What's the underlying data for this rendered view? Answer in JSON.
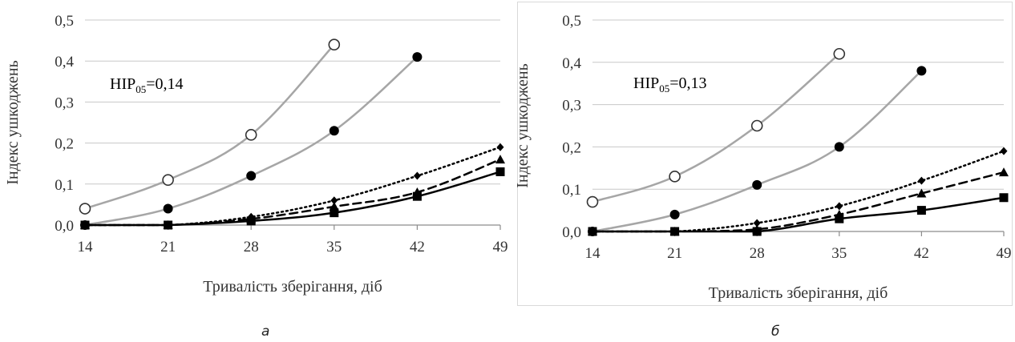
{
  "chart_data": [
    {
      "type": "line",
      "x": [
        14,
        21,
        28,
        35,
        42,
        49
      ],
      "xlabel": "Тривалість зберігання, діб",
      "ylabel": "Індекс ушкоджень",
      "ylim": [
        0,
        0.5
      ],
      "yticks": [
        "0,0",
        "0,1",
        "0,2",
        "0,3",
        "0,4",
        "0,5"
      ],
      "xticks": [
        "14",
        "21",
        "28",
        "35",
        "42",
        "49"
      ],
      "grid": true,
      "annotation": {
        "prefix": "НІР",
        "sub": "05",
        "value": "=0,14"
      },
      "caption": "а",
      "series": [
        {
          "marker": "open-circle",
          "line": "solid-light",
          "x": [
            14,
            21,
            28,
            35
          ],
          "values": [
            0.04,
            0.11,
            0.22,
            0.44
          ]
        },
        {
          "marker": "filled-circle",
          "line": "solid-light",
          "x": [
            14,
            21,
            28,
            35,
            42
          ],
          "values": [
            0.0,
            0.04,
            0.12,
            0.23,
            0.41
          ]
        },
        {
          "marker": "diamond",
          "line": "dotted",
          "x": [
            14,
            21,
            28,
            35,
            42,
            49
          ],
          "values": [
            0.0,
            0.0,
            0.02,
            0.06,
            0.12,
            0.19
          ]
        },
        {
          "marker": "triangle",
          "line": "dashed",
          "x": [
            14,
            21,
            28,
            35,
            42,
            49
          ],
          "values": [
            0.0,
            0.0,
            0.015,
            0.045,
            0.08,
            0.16
          ]
        },
        {
          "marker": "square",
          "line": "solid-dark",
          "x": [
            14,
            21,
            28,
            35,
            42,
            49
          ],
          "values": [
            0.0,
            0.0,
            0.01,
            0.03,
            0.07,
            0.13
          ]
        }
      ]
    },
    {
      "type": "line",
      "x": [
        14,
        21,
        28,
        35,
        42,
        49
      ],
      "xlabel": "Тривалість зберігання, діб",
      "ylabel": "Індекс ушкоджень",
      "ylim": [
        0,
        0.5
      ],
      "yticks": [
        "0,0",
        "0,1",
        "0,2",
        "0,3",
        "0,4",
        "0,5"
      ],
      "xticks": [
        "14",
        "21",
        "28",
        "35",
        "42",
        "49"
      ],
      "grid": true,
      "annotation": {
        "prefix": "НІР",
        "sub": "05",
        "value": "=0,13"
      },
      "caption": "б",
      "series": [
        {
          "marker": "open-circle",
          "line": "solid-light",
          "x": [
            14,
            21,
            28,
            35
          ],
          "values": [
            0.07,
            0.13,
            0.25,
            0.42
          ]
        },
        {
          "marker": "filled-circle",
          "line": "solid-light",
          "x": [
            14,
            21,
            28,
            35,
            42
          ],
          "values": [
            0.0,
            0.04,
            0.11,
            0.2,
            0.38
          ]
        },
        {
          "marker": "diamond",
          "line": "dotted",
          "x": [
            14,
            21,
            28,
            35,
            42,
            49
          ],
          "values": [
            0.0,
            0.0,
            0.02,
            0.06,
            0.12,
            0.19
          ]
        },
        {
          "marker": "triangle",
          "line": "dashed",
          "x": [
            14,
            21,
            28,
            35,
            42,
            49
          ],
          "values": [
            0.0,
            0.0,
            0.005,
            0.04,
            0.09,
            0.14
          ]
        },
        {
          "marker": "square",
          "line": "solid-dark",
          "x": [
            14,
            21,
            28,
            35,
            42,
            49
          ],
          "values": [
            0.0,
            0.0,
            0.0,
            0.03,
            0.05,
            0.08
          ]
        }
      ]
    }
  ]
}
